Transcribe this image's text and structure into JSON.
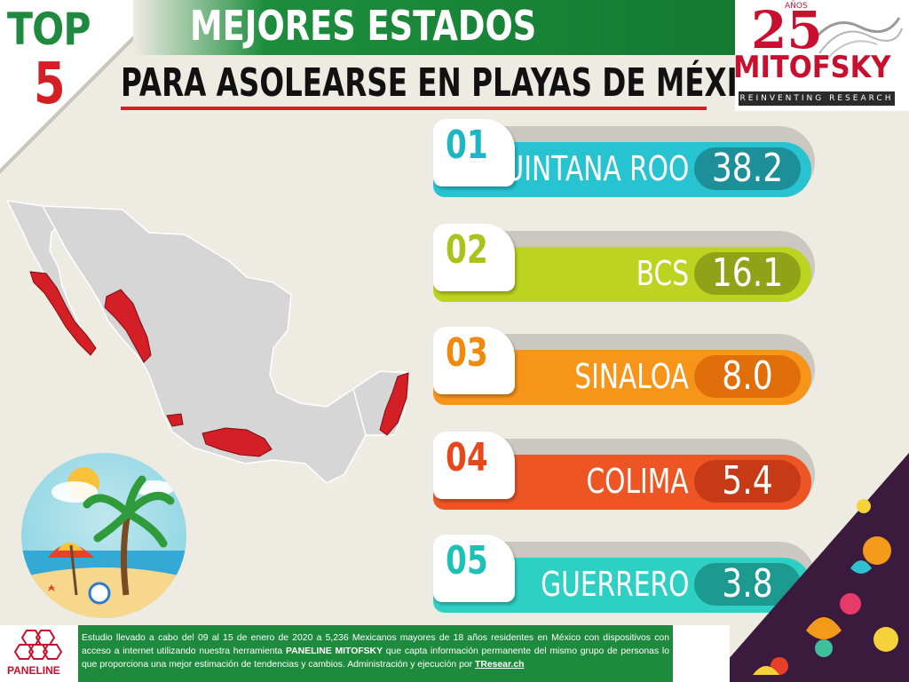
{
  "header": {
    "top_label": "TOP",
    "top_number": "5",
    "title_line1": "MEJORES ESTADOS",
    "title_line2": "PARA ASOLEARSE EN PLAYAS DE MÉXICO"
  },
  "logo": {
    "years": "25",
    "years_label": "AÑOS",
    "brand": "MITOFSKY",
    "tagline": "REINVENTING RESEARCH"
  },
  "rankings": [
    {
      "rank": "01",
      "state": "QUINTANA ROO",
      "value": "38.2",
      "tab_color": "#1fb5c4",
      "bar_color": "#27c3d1",
      "pill_color": "#1d8f98"
    },
    {
      "rank": "02",
      "state": "BCS",
      "value": "16.1",
      "tab_color": "#a9c21c",
      "bar_color": "#bcd320",
      "pill_color": "#8ea318"
    },
    {
      "rank": "03",
      "state": "SINALOA",
      "value": "8.0",
      "tab_color": "#f08a0d",
      "bar_color": "#f7951a",
      "pill_color": "#e06f0b"
    },
    {
      "rank": "04",
      "state": "COLIMA",
      "value": "5.4",
      "tab_color": "#e8461b",
      "bar_color": "#ee5524",
      "pill_color": "#c73a15"
    },
    {
      "rank": "05",
      "state": "GUERRERO",
      "value": "3.8",
      "tab_color": "#1fc1b7",
      "bar_color": "#2fd0c4",
      "pill_color": "#1d9a90"
    }
  ],
  "map": {
    "highlighted_states": [
      "Baja California Sur",
      "Sinaloa",
      "Colima",
      "Guerrero",
      "Quintana Roo"
    ],
    "highlight_color": "#d41f26",
    "base_color": "#d6d6d6"
  },
  "footer": {
    "part1": "Estudio llevado a cabo del 09 al 15 de enero de 2020 a 5,236 Mexicanos mayores de 18 años residentes en México con dispositivos con acceso a internet utilizando nuestra herramienta ",
    "bold": "PANELINE MITOFSKY",
    "part2": " que capta información permanente del mismo grupo de personas lo que proporciona una mejor estimación de tendencias y cambios. Administración y ejecución por ",
    "link": "TResear.ch",
    "paneline_label": "PANELINE"
  }
}
